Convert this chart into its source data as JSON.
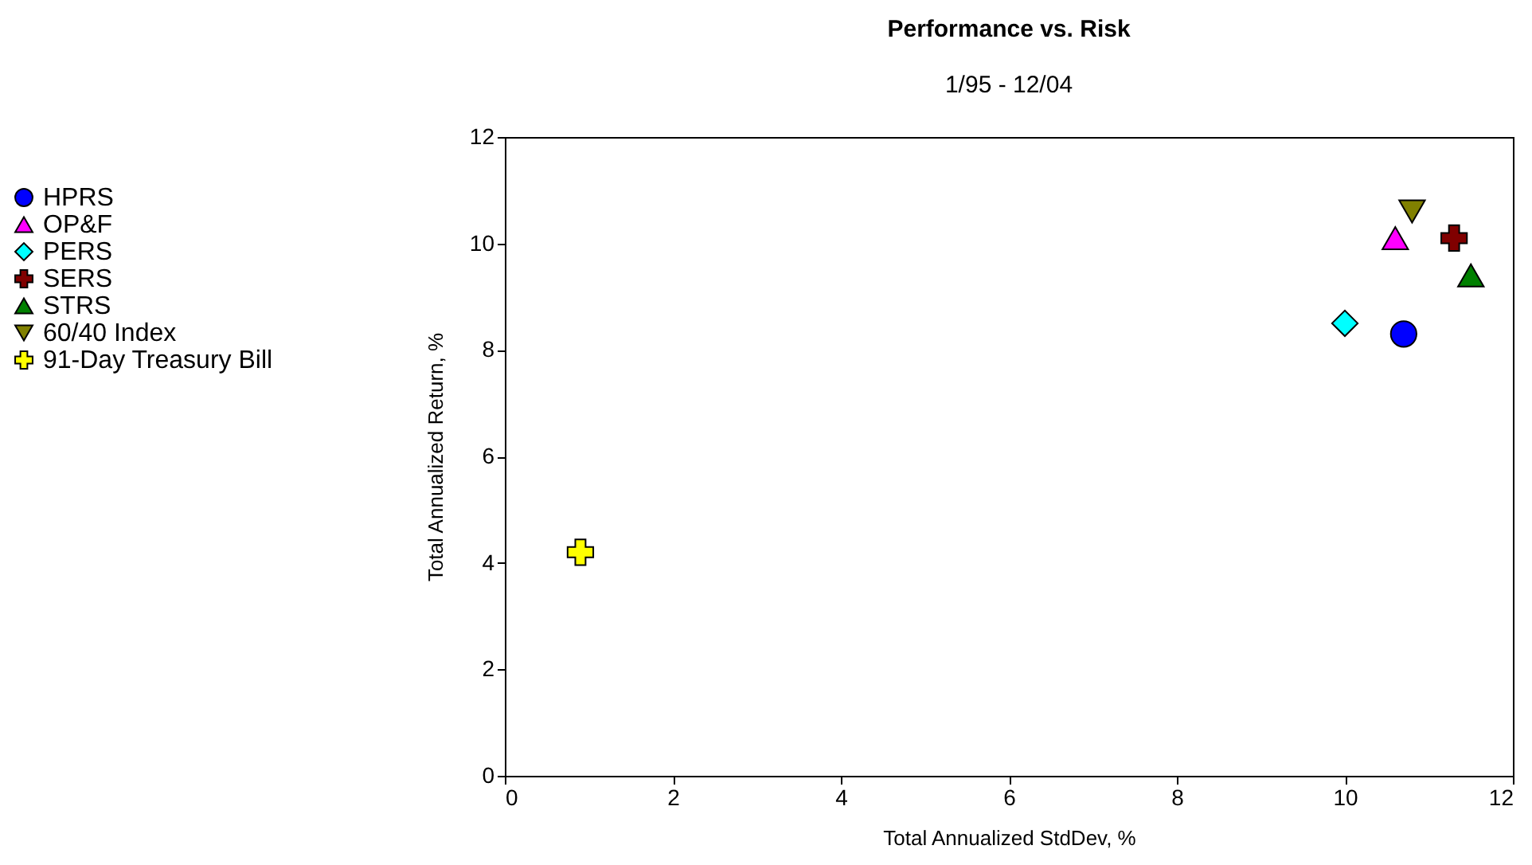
{
  "chart_data": {
    "type": "scatter",
    "title": "Performance vs. Risk",
    "subtitle": "1/95 - 12/04",
    "xlabel": "Total Annualized StdDev, %",
    "ylabel": "Total Annualized Return, %",
    "xlim": [
      0,
      12
    ],
    "xticks": [
      0,
      2,
      4,
      6,
      8,
      10,
      12
    ],
    "ylim": [
      0,
      12
    ],
    "yticks": [
      0,
      2,
      4,
      6,
      8,
      10,
      12
    ],
    "grid": false,
    "legend": "left",
    "series": [
      {
        "name": "HPRS",
        "color": "#0000ff",
        "marker": "circle",
        "x": [
          10.7
        ],
        "values": [
          8.3
        ]
      },
      {
        "name": "OP&F",
        "color": "#ff00ff",
        "marker": "triangle",
        "x": [
          10.6
        ],
        "values": [
          10.1
        ]
      },
      {
        "name": "PERS",
        "color": "#00ffff",
        "marker": "diamond",
        "x": [
          10.0
        ],
        "values": [
          8.5
        ]
      },
      {
        "name": "SERS",
        "color": "#800000",
        "marker": "cross",
        "x": [
          11.3
        ],
        "values": [
          10.1
        ]
      },
      {
        "name": "STRS",
        "color": "#008000",
        "marker": "triangle",
        "x": [
          11.5
        ],
        "values": [
          9.4
        ]
      },
      {
        "name": "60/40 Index",
        "color": "#808000",
        "marker": "triangle-down",
        "x": [
          10.8
        ],
        "values": [
          10.6
        ]
      },
      {
        "name": "91-Day Treasury Bill",
        "color": "#ffff00",
        "marker": "cross",
        "x": [
          0.9
        ],
        "values": [
          4.2
        ]
      }
    ]
  }
}
